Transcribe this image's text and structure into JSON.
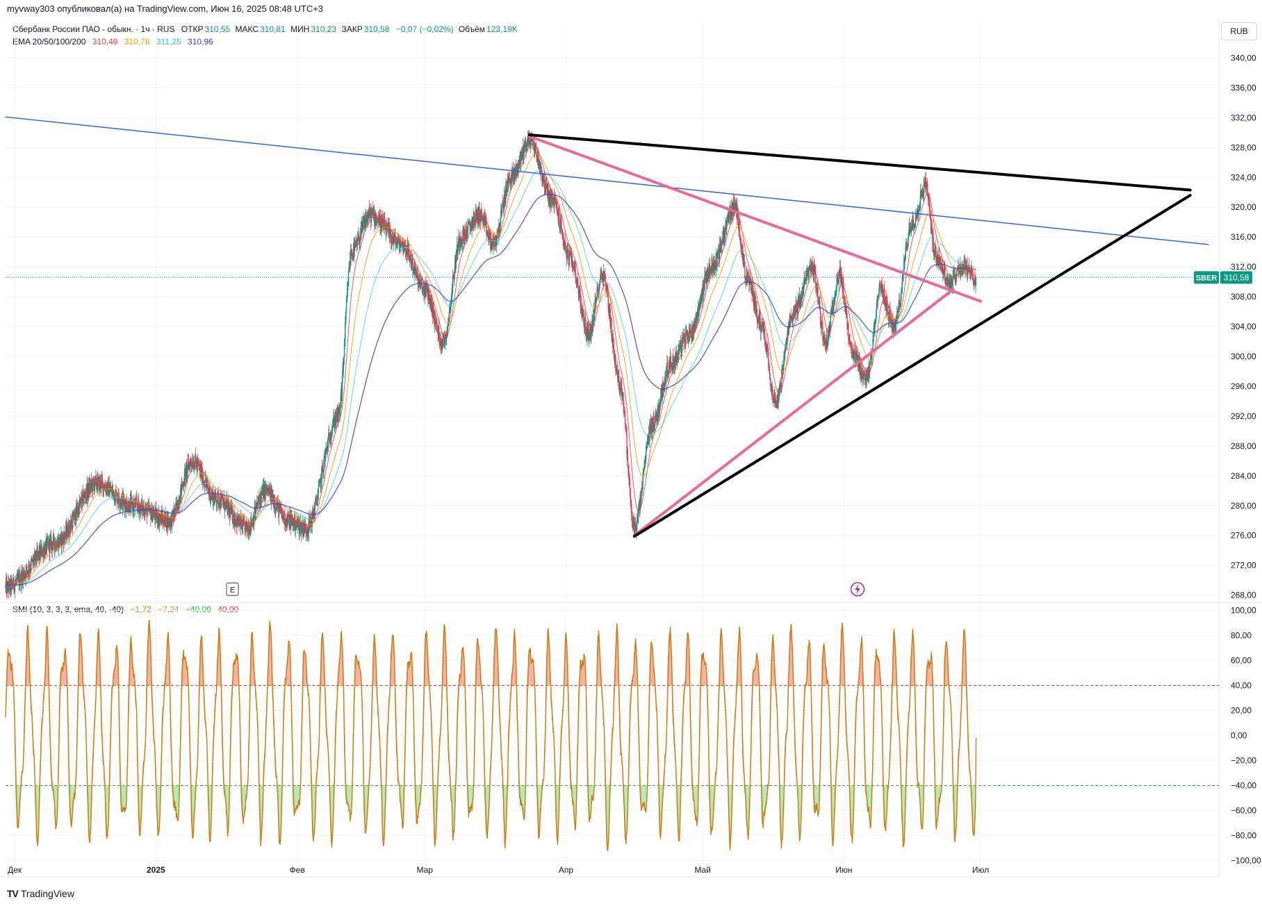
{
  "header": {
    "publisher_line": "myvway303 опубликовал(а) на TradingView.com, Июн 16, 2025 08:48 UTC+3",
    "currency": "RUB",
    "brand": "TradingView"
  },
  "legend": {
    "symbol_desc": "Сбербанк России ПАО - обыкн. · 1ч · RUS",
    "open_label": "ОТКР",
    "open": "310,55",
    "high_label": "МАКС",
    "high": "310,81",
    "low_label": "МИН",
    "low": "310,23",
    "close_label": "ЗАКР",
    "close": "310,58",
    "change": "−0,07 (−0,02%)",
    "volume_label": "Объём",
    "volume": "123,19K",
    "ema_label": "EMA 20/50/100/200",
    "ema_values": [
      "310,49",
      "310,78",
      "311,25",
      "310,96"
    ]
  },
  "smi_legend": {
    "label": "SMI (10, 3, 3, 3, ema, 40, -40)",
    "values": [
      "−1,72",
      "−7,24",
      "−40,00",
      "40,00"
    ]
  },
  "colors": {
    "up": "#089981",
    "down": "#f23645",
    "ema20": "#f23645",
    "ema50": "#ff9800",
    "ema100": "#4dd0e1",
    "ema200": "#3f3fbf",
    "trend_blue": "#2962ff",
    "trend_pink": "#e8699a",
    "trend_black": "#000000",
    "smi_line": "#c57a12",
    "smi_signal": "#d18a2c",
    "overbought": "#e53935",
    "oversold": "#43a047"
  },
  "chart_data": [
    {
      "type": "candlestick",
      "symbol": "SBER",
      "last_price": "310,58",
      "y_axis_ticks": [
        "340,00",
        "336,00",
        "332,00",
        "328,00",
        "324,00",
        "320,00",
        "316,00",
        "312,00",
        "308,00",
        "304,00",
        "300,00",
        "296,00",
        "292,00",
        "288,00",
        "284,00",
        "280,00",
        "276,00",
        "272,00",
        "268,00"
      ],
      "ylim": [
        267.5,
        342
      ],
      "x_axis_labels": [
        "Дек",
        "2025",
        "Фев",
        "Мар",
        "Апр",
        "Май",
        "Июн",
        "Июл"
      ],
      "path_keypoints": [
        {
          "date": "2024-11-29",
          "price": 269
        },
        {
          "date": "2024-12-10",
          "price": 275
        },
        {
          "date": "2024-12-19",
          "price": 283
        },
        {
          "date": "2024-12-27",
          "price": 280
        },
        {
          "date": "2025-01-04",
          "price": 278
        },
        {
          "date": "2025-01-09",
          "price": 286
        },
        {
          "date": "2025-01-14",
          "price": 281
        },
        {
          "date": "2025-01-21",
          "price": 277
        },
        {
          "date": "2025-01-25",
          "price": 282
        },
        {
          "date": "2025-01-30",
          "price": 278
        },
        {
          "date": "2025-02-03",
          "price": 277
        },
        {
          "date": "2025-02-10",
          "price": 292
        },
        {
          "date": "2025-02-13",
          "price": 314
        },
        {
          "date": "2025-02-17",
          "price": 319
        },
        {
          "date": "2025-02-24",
          "price": 315
        },
        {
          "date": "2025-03-01",
          "price": 309
        },
        {
          "date": "2025-03-05",
          "price": 302
        },
        {
          "date": "2025-03-09",
          "price": 316
        },
        {
          "date": "2025-03-13",
          "price": 319
        },
        {
          "date": "2025-03-16",
          "price": 315
        },
        {
          "date": "2025-03-20",
          "price": 324
        },
        {
          "date": "2025-03-24",
          "price": 329
        },
        {
          "date": "2025-03-29",
          "price": 321
        },
        {
          "date": "2025-04-02",
          "price": 313
        },
        {
          "date": "2025-04-06",
          "price": 303
        },
        {
          "date": "2025-04-09",
          "price": 311
        },
        {
          "date": "2025-04-13",
          "price": 296
        },
        {
          "date": "2025-04-16",
          "price": 277
        },
        {
          "date": "2025-04-20",
          "price": 291
        },
        {
          "date": "2025-04-24",
          "price": 299
        },
        {
          "date": "2025-04-28",
          "price": 303
        },
        {
          "date": "2025-05-03",
          "price": 312
        },
        {
          "date": "2025-05-08",
          "price": 320
        },
        {
          "date": "2025-05-11",
          "price": 310
        },
        {
          "date": "2025-05-14",
          "price": 304
        },
        {
          "date": "2025-05-17",
          "price": 294
        },
        {
          "date": "2025-05-21",
          "price": 306
        },
        {
          "date": "2025-05-25",
          "price": 312
        },
        {
          "date": "2025-05-28",
          "price": 302
        },
        {
          "date": "2025-05-31",
          "price": 311
        },
        {
          "date": "2025-06-03",
          "price": 300
        },
        {
          "date": "2025-06-06",
          "price": 297
        },
        {
          "date": "2025-06-09",
          "price": 309
        },
        {
          "date": "2025-06-12",
          "price": 304
        },
        {
          "date": "2025-06-16",
          "price": 318
        },
        {
          "date": "2025-06-19",
          "price": 323
        },
        {
          "date": "2025-06-21",
          "price": 314
        },
        {
          "date": "2025-06-24",
          "price": 310
        },
        {
          "date": "2025-06-27",
          "price": 312
        },
        {
          "date": "2025-06-30",
          "price": 310.6
        }
      ],
      "trendlines": [
        {
          "color": "trend_blue",
          "from": {
            "date": "2024-11-29",
            "price": 332.1
          },
          "to": {
            "date": "2025-08-20",
            "price": 315.0
          }
        },
        {
          "color": "trend_pink",
          "from": {
            "date": "2025-03-24",
            "price": 329.5
          },
          "to": {
            "date": "2025-07-01",
            "price": 307.4
          }
        },
        {
          "color": "trend_pink",
          "from": {
            "date": "2025-04-16",
            "price": 276.0
          },
          "to": {
            "date": "2025-06-25",
            "price": 309.0
          }
        },
        {
          "color": "trend_black",
          "from": {
            "date": "2025-03-24",
            "price": 329.7
          },
          "to": {
            "date": "2025-08-16",
            "price": 322.3
          }
        },
        {
          "color": "trend_black",
          "from": {
            "date": "2025-04-16",
            "price": 275.9
          },
          "to": {
            "date": "2025-08-16",
            "price": 321.6
          }
        }
      ]
    },
    {
      "type": "line",
      "title": "SMI",
      "y_axis_ticks": [
        "100,00",
        "80,00",
        "60,00",
        "40,00",
        "20,00",
        "0,00",
        "−20,00",
        "−40,00",
        "−60,00",
        "−80,00",
        "−100,00"
      ],
      "ylim": [
        -102,
        102
      ],
      "levels": [
        40,
        -40
      ],
      "last_values": [
        -1.72,
        -7.24
      ]
    }
  ]
}
